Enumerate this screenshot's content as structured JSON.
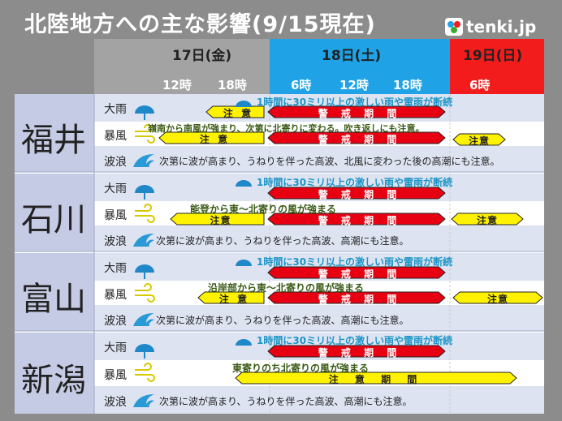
{
  "title": "北陸地方への主な影響(9/15現在)",
  "logo": "tenki.jp",
  "header": {
    "days": [
      {
        "label": "17日(金)",
        "times": [
          "12時",
          "18時"
        ],
        "color": "#a3a3a3"
      },
      {
        "label": "18日(土)",
        "times": [
          "6時",
          "12時",
          "18時"
        ],
        "color": "#1fa3e6"
      },
      {
        "label": "19日(日)",
        "times": [
          "6時"
        ],
        "color": "#f21c1c"
      }
    ]
  },
  "labels": {
    "rain": "大雨",
    "wind": "暴風",
    "wave": "波浪",
    "warning": "警 戒 期 間",
    "caution": "注 意",
    "caution_period": "注 意 期 間",
    "caution_short": "注意"
  },
  "prefectures": [
    {
      "name": "福井",
      "rain_note": "1時間に30ミリ以上の激しい雨や雷雨が断続",
      "wind_note": "嶺南から南風が強まり、次第に北寄りに変わる。吹き返しにも注意。",
      "wave_note": "次第に波が高まり、うねりを伴った高波、北風に変わった後の高潮にも注意。"
    },
    {
      "name": "石川",
      "rain_note": "1時間に30ミリ以上の激しい雨や雷雨が断続",
      "wind_note": "能登から東～北寄りの風が強まる",
      "wave_note": "次第に波が高まり、うねりを伴った高波、高潮にも注意。"
    },
    {
      "name": "富山",
      "rain_note": "1時間に30ミリ以上の激しい雨や雷雨が断続",
      "wind_note": "沿岸部から東～北寄りの風が強まる",
      "wave_note": "次第に波が高まり、うねりを伴った高波、高潮にも注意。"
    },
    {
      "name": "新潟",
      "rain_note": "1時間に30ミリ以上の激しい雨や雷雨が断続",
      "wind_note": "東寄りのち北寄りの風が強まる",
      "wave_note": "次第に波が高まり、うねりを伴った高波、高潮にも注意。"
    }
  ],
  "colors": {
    "warning": "#e60012",
    "caution": "#fff200",
    "rain_icon": "#1e88c8",
    "wave_icon": "#2a9ad6",
    "wind_icon": "#e8e000"
  }
}
